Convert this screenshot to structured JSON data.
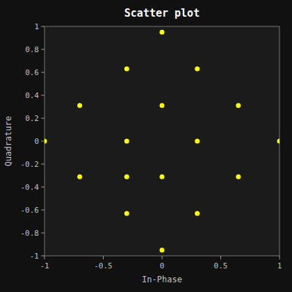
{
  "chart_data": {
    "type": "scatter",
    "title": "Scatter plot",
    "xlabel": "In-Phase",
    "ylabel": "Quadrature",
    "x": [
      -1.0,
      1.0,
      -0.7,
      -0.7,
      -0.3,
      -0.3,
      -0.3,
      -0.3,
      0.0,
      0.0,
      0.0,
      0.0,
      0.3,
      0.3,
      0.3,
      0.65,
      0.65
    ],
    "values": [
      0.0,
      0.0,
      0.31,
      -0.31,
      0.63,
      -0.63,
      0.0,
      -0.31,
      0.95,
      -0.95,
      0.31,
      -0.31,
      0.63,
      -0.63,
      0.0,
      0.31,
      -0.31
    ],
    "color": "#ffff00",
    "marker": "circle",
    "xlim": [
      -1,
      1
    ],
    "ylim": [
      -1,
      1
    ],
    "xticks": [
      -1,
      -0.5,
      0,
      0.5,
      1
    ],
    "yticks": [
      -1,
      -0.8,
      -0.6,
      -0.4,
      -0.2,
      0,
      0.2,
      0.4,
      0.6,
      0.8,
      1
    ],
    "grid": false
  }
}
